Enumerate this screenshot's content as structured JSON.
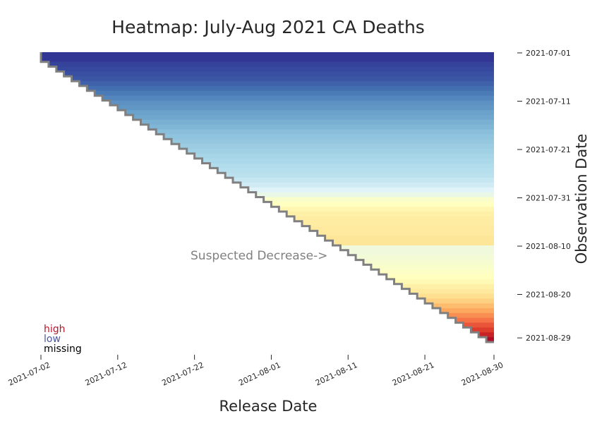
{
  "chart_data": {
    "type": "heatmap",
    "title": "Heatmap: July-Aug 2021 CA Deaths",
    "xlabel": "Release Date",
    "ylabel": "Observation Date",
    "x_range": [
      "2021-07-02",
      "2021-08-30"
    ],
    "y_range": [
      "2021-07-01",
      "2021-08-29"
    ],
    "x_ticks": [
      "2021-07-02",
      "2021-07-12",
      "2021-07-22",
      "2021-08-01",
      "2021-08-11",
      "2021-08-21",
      "2021-08-30"
    ],
    "y_ticks": [
      "2021-07-01",
      "2021-07-11",
      "2021-07-21",
      "2021-07-31",
      "2021-08-10",
      "2021-08-20",
      "2021-08-29"
    ],
    "colormap": "RdYlBu_r",
    "legend": [
      {
        "label": "high",
        "color": "#b2182b"
      },
      {
        "label": "low",
        "color": "#4a54a4"
      },
      {
        "label": "missing",
        "color": "#000000"
      }
    ],
    "annotation": "Suspected Decrease->",
    "diagonal_color": "#808080",
    "row_levels": [
      0.0,
      0.0,
      0.02,
      0.03,
      0.04,
      0.05,
      0.07,
      0.09,
      0.11,
      0.13,
      0.15,
      0.16,
      0.18,
      0.19,
      0.21,
      0.22,
      0.24,
      0.25,
      0.26,
      0.27,
      0.28,
      0.29,
      0.3,
      0.31,
      0.32,
      0.33,
      0.35,
      0.37,
      0.4,
      0.43,
      0.48,
      0.5,
      0.53,
      0.55,
      0.56,
      0.56,
      0.57,
      0.57,
      0.58,
      0.58,
      0.45,
      0.45,
      0.46,
      0.47,
      0.48,
      0.49,
      0.5,
      0.52,
      0.55,
      0.57,
      0.6,
      0.63,
      0.67,
      0.71,
      0.75,
      0.79,
      0.84,
      0.88,
      0.93,
      0.98
    ]
  }
}
